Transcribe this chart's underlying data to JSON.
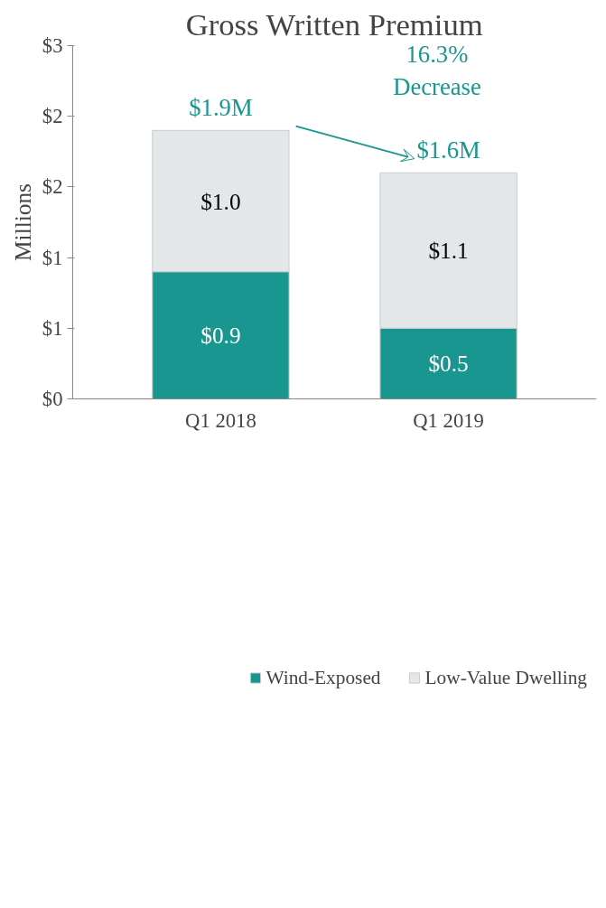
{
  "chart_data": {
    "type": "bar",
    "title": "Gross Written Premium",
    "ylabel": "Millions",
    "categories": [
      "Q1 2018",
      "Q1 2019"
    ],
    "stacked": true,
    "series": [
      {
        "name": "Wind-Exposed",
        "color": "#1a9690",
        "values": [
          0.9,
          0.5
        ],
        "value_labels": [
          "$0.9",
          "$0.5"
        ]
      },
      {
        "name": "Low-Value Dwelling",
        "color": "#e3e7e9",
        "values": [
          1.0,
          1.1
        ],
        "value_labels": [
          "$1.0",
          "$1.1"
        ]
      }
    ],
    "totals": [
      "$1.9M",
      "$1.6M"
    ],
    "annotations": [
      "16.3% Decrease"
    ],
    "ylim": [
      0,
      2.5
    ],
    "yticks": [
      {
        "value": 0,
        "label": "$0"
      },
      {
        "value": 0.5,
        "label": "$1"
      },
      {
        "value": 1,
        "label": "$1"
      },
      {
        "value": 1.5,
        "label": "$2"
      },
      {
        "value": 2,
        "label": "$2"
      },
      {
        "value": 2.5,
        "label": "$3"
      }
    ],
    "grid": false,
    "legend": "bottom"
  }
}
